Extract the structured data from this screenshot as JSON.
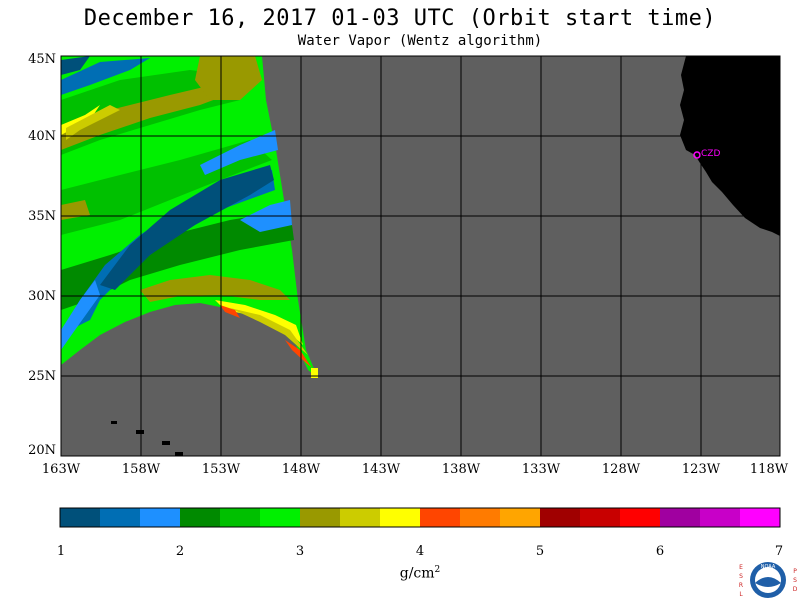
{
  "title": "December 16, 2017  01-03 UTC  (Orbit start time)",
  "subtitle": "Water Vapor (Wentz algorithm)",
  "map": {
    "background_color": "#5f5f5f",
    "land_color": "#000000",
    "lat_labels": [
      "45N",
      "40N",
      "35N",
      "30N",
      "25N",
      "20N"
    ],
    "lon_labels": [
      "163W",
      "158W",
      "153W",
      "148W",
      "143W",
      "138W",
      "133W",
      "128W",
      "123W",
      "118W"
    ],
    "marker": {
      "label": "CZD",
      "color": "#ff00ff"
    }
  },
  "colorbar": {
    "colors": [
      "#00507a",
      "#006eb4",
      "#1e90ff",
      "#008a00",
      "#00c000",
      "#00f000",
      "#999900",
      "#cccc00",
      "#ffff00",
      "#ff4500",
      "#ff7b00",
      "#ffa500",
      "#a00000",
      "#c80000",
      "#ff0000",
      "#a000a0",
      "#c800c8",
      "#ff00ff"
    ],
    "tick_labels": [
      "1",
      "2",
      "3",
      "4",
      "5",
      "6",
      "7"
    ],
    "units_base": "g/cm",
    "units_exp": "2"
  },
  "logo": {
    "left_letters": "ESRL",
    "right_letters": "PSD",
    "center": "NOAA"
  }
}
